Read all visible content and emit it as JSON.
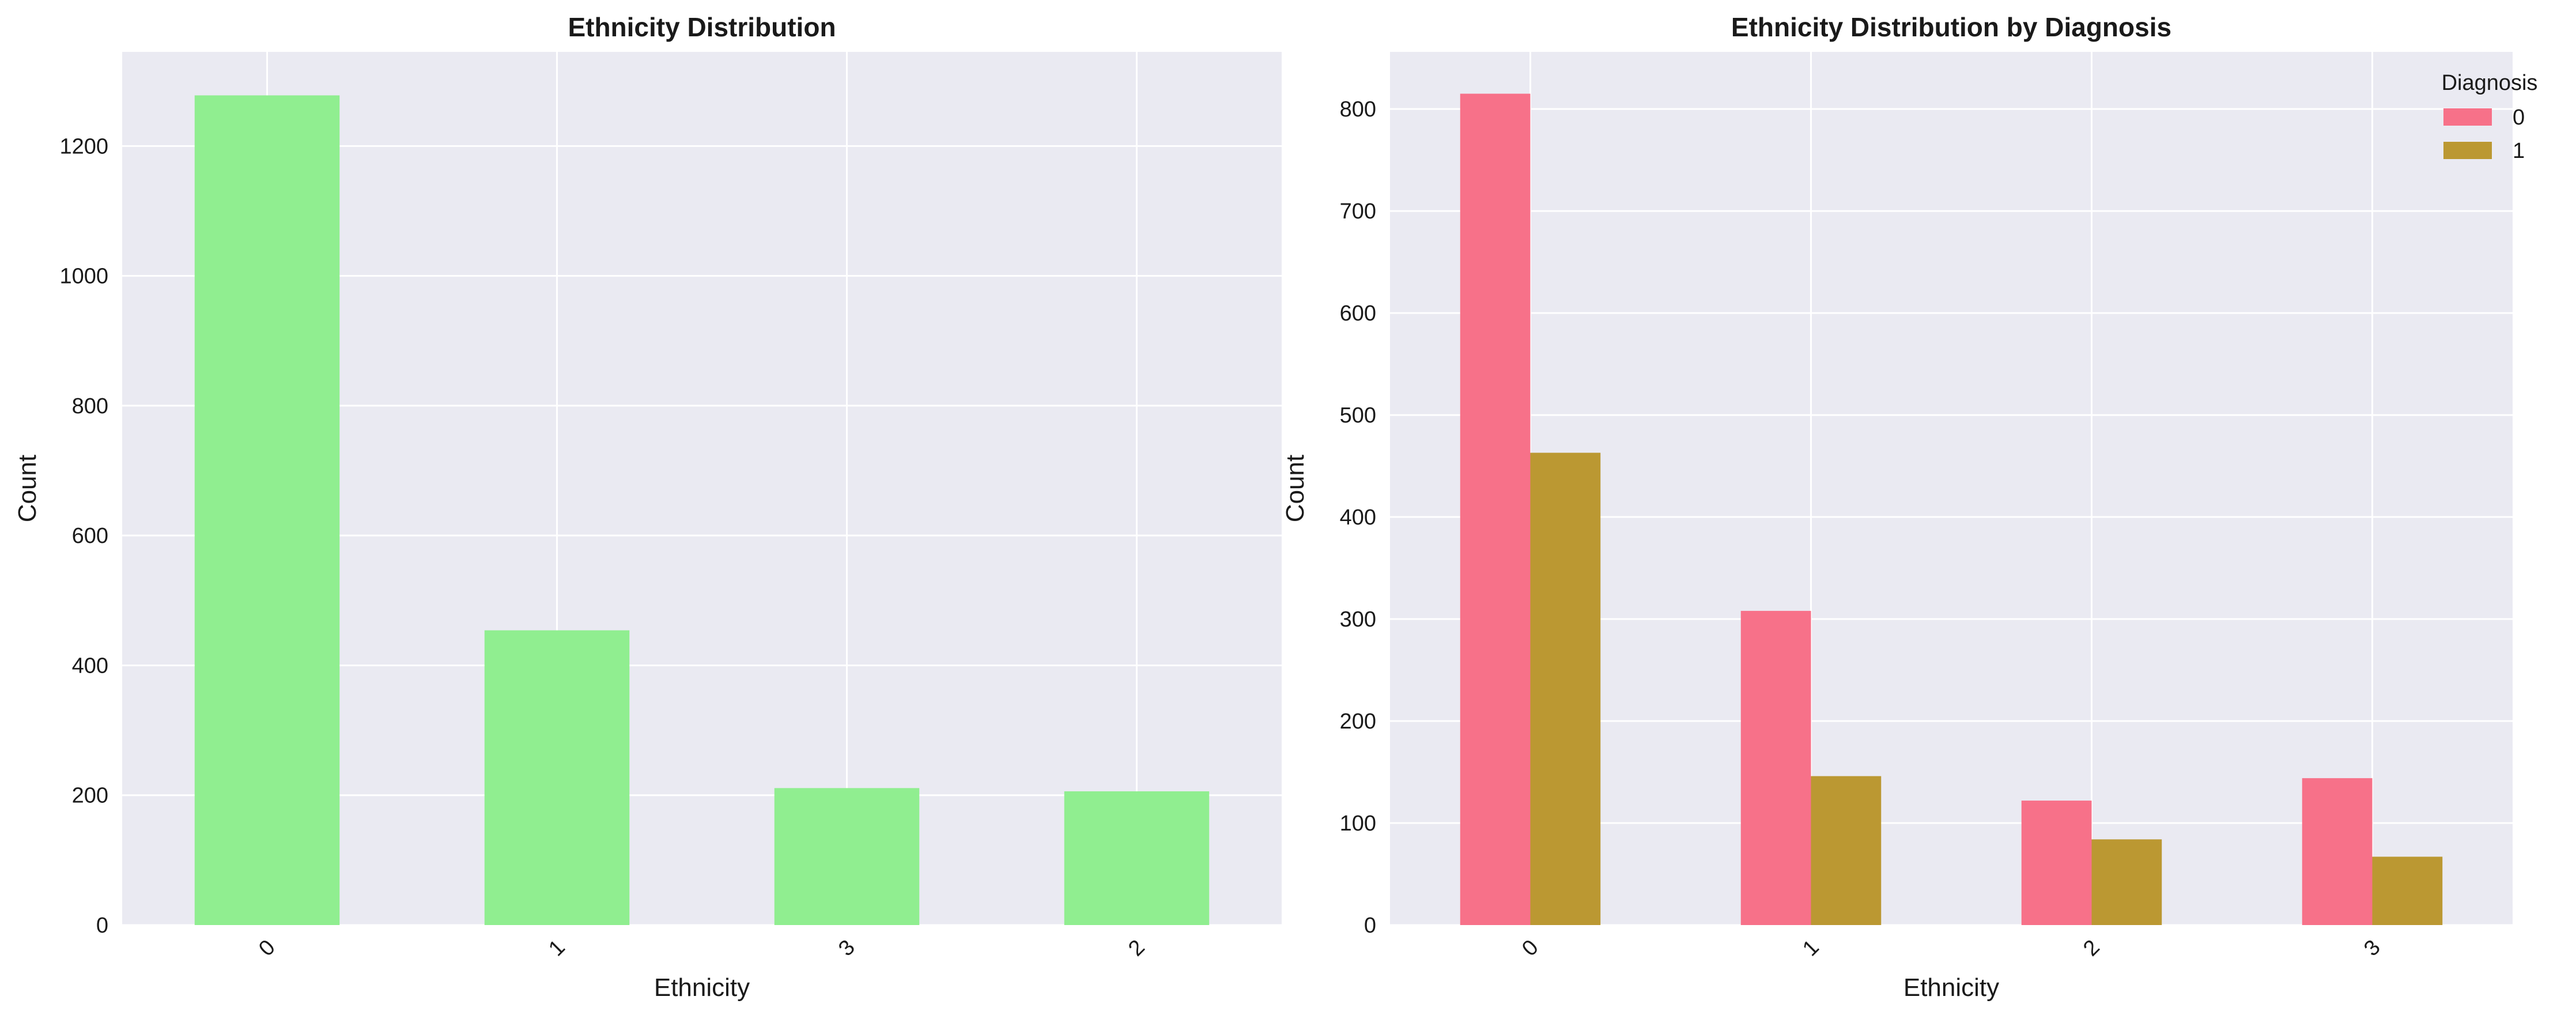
{
  "chart_data": [
    {
      "type": "bar",
      "title": "Ethnicity Distribution",
      "xlabel": "Ethnicity",
      "ylabel": "Count",
      "categories": [
        "0",
        "1",
        "3",
        "2"
      ],
      "values": [
        1278,
        454,
        211,
        206
      ],
      "ylim": [
        0,
        1345
      ],
      "yticks": [
        0,
        200,
        400,
        600,
        800,
        1000,
        1200
      ],
      "grid": true,
      "colors": [
        "#90ee90"
      ]
    },
    {
      "type": "bar",
      "title": "Ethnicity Distribution by Diagnosis",
      "xlabel": "Ethnicity",
      "ylabel": "Count",
      "categories": [
        "0",
        "1",
        "2",
        "3"
      ],
      "series": [
        {
          "name": "0",
          "values": [
            815,
            308,
            122,
            144
          ]
        },
        {
          "name": "1",
          "values": [
            463,
            146,
            84,
            67
          ]
        }
      ],
      "ylim": [
        0,
        856
      ],
      "yticks": [
        0,
        100,
        200,
        300,
        400,
        500,
        600,
        700,
        800
      ],
      "grid": true,
      "legend": {
        "title": "Diagnosis",
        "placement": "top-right"
      },
      "colors": [
        "#f77189",
        "#bb9832"
      ]
    }
  ]
}
